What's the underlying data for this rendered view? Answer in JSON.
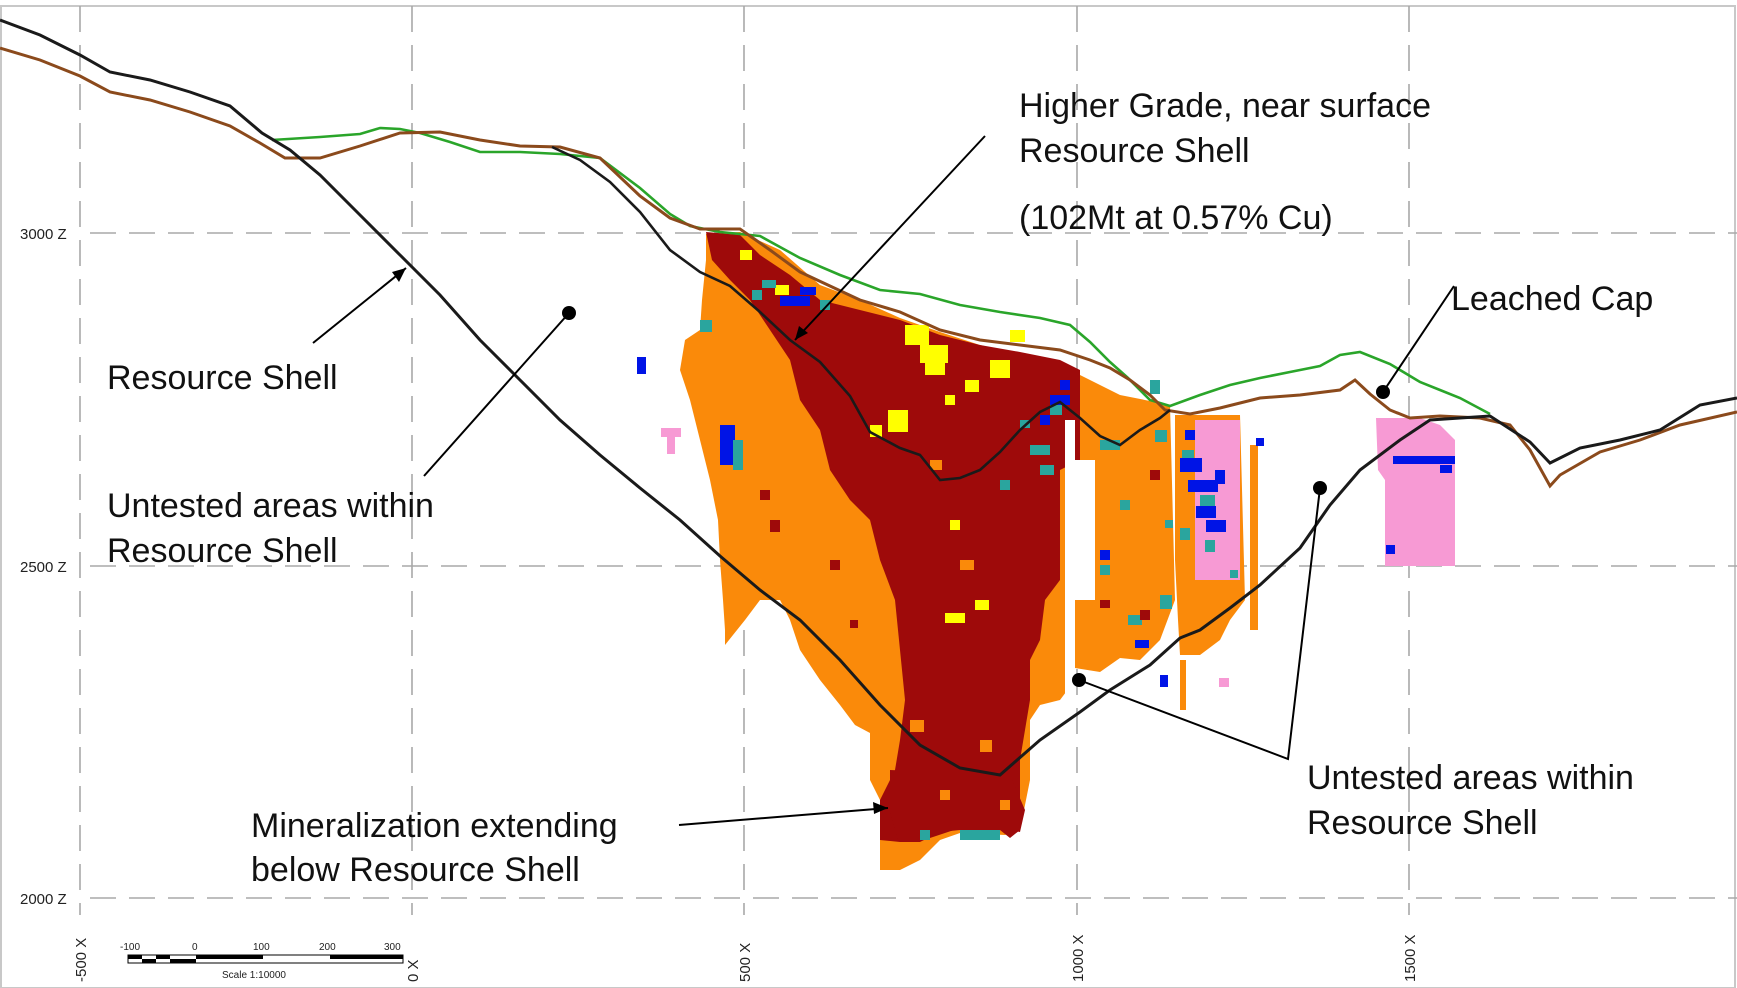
{
  "axes": {
    "z_ticks": [
      "3000 Z",
      "2500 Z",
      "2000 Z"
    ],
    "x_ticks": [
      "-500 X",
      "0 X",
      "500 X",
      "1000 X",
      "1500 X"
    ]
  },
  "annotations": {
    "higher_grade_line1": "Higher Grade, near surface",
    "higher_grade_line2": "Resource Shell",
    "higher_grade_tonnage": "(102Mt at 0.57% Cu)",
    "resource_shell": "Resource Shell",
    "untested_left_line1": "Untested areas within",
    "untested_left_line2": "Resource Shell",
    "leached_cap": "Leached Cap",
    "mineralization_line1": "Mineralization extending",
    "mineralization_line2": "below Resource Shell",
    "untested_right_line1": "Untested areas within",
    "untested_right_line2": "Resource Shell"
  },
  "scale_bar": {
    "ticks": [
      "-100",
      "0",
      "100",
      "200",
      "300"
    ],
    "caption": "Scale 1:10000"
  },
  "colors": {
    "topography": "#8b4a1c",
    "green_surface": "#2aa52a",
    "shell": "#1a1a1a",
    "grade_high": "#9e0a0a",
    "grade_mid": "#fa8a0a",
    "grade_yellow": "#ffff00",
    "grade_cyan": "#2aa59e",
    "grade_blue": "#0014e6",
    "leached_pink": "#f79ad4"
  }
}
